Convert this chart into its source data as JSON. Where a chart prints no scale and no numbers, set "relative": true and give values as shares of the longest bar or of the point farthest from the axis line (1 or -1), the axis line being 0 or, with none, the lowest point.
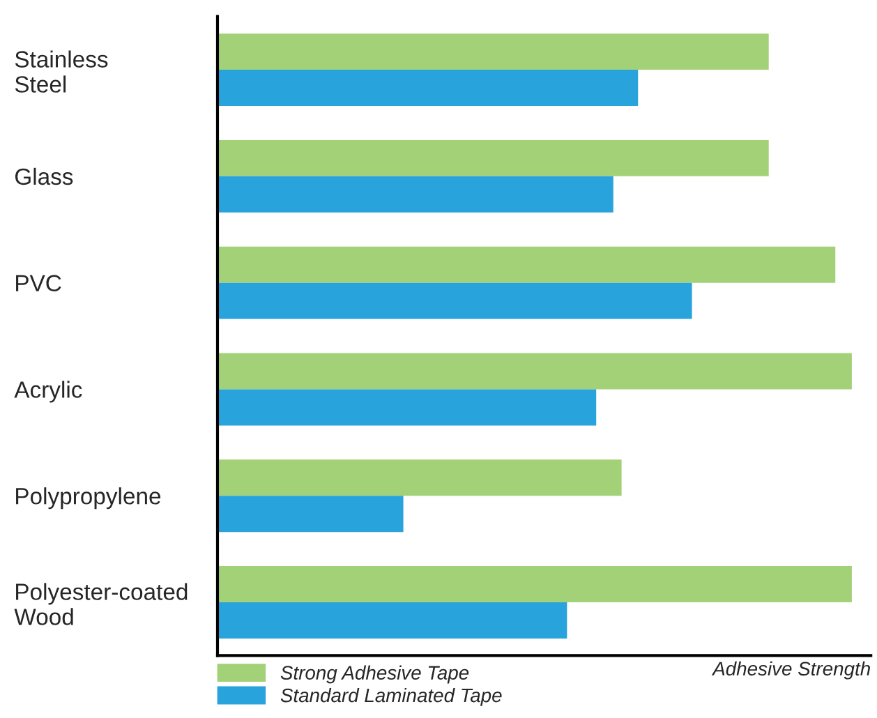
{
  "chart_data": {
    "type": "bar",
    "orientation": "horizontal",
    "relative": true,
    "xlabel": "Adhesive Strength",
    "categories": [
      "Stainless\nSteel",
      "Glass",
      "PVC",
      "Acrylic",
      "Polypropylene",
      "Polyester-coated\nWood"
    ],
    "series": [
      {
        "name": "Strong Adhesive Tape",
        "color": "#a3d177",
        "values": [
          0.869,
          0.869,
          0.974,
          1,
          0.637,
          1
        ]
      },
      {
        "name": "Standard Laminated Tape",
        "color": "#29a3dc",
        "values": [
          0.663,
          0.624,
          0.748,
          0.597,
          0.293,
          0.551
        ]
      }
    ],
    "legend": "bottom left",
    "grid": false
  }
}
